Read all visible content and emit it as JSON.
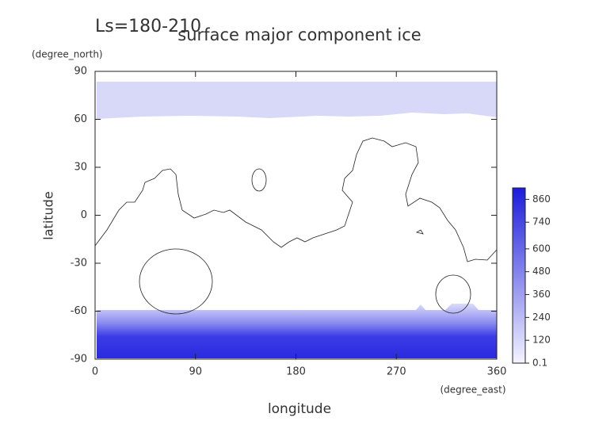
{
  "chart_data": {
    "type": "contour",
    "annotation": "Ls=180-210",
    "title": "surface major component ice",
    "xlabel": "longitude",
    "xunit": "(degree_east)",
    "ylabel": "latitude",
    "yunit": "(degree_north)",
    "xlim": [
      0,
      360
    ],
    "xticks": [
      0,
      90,
      180,
      270,
      360
    ],
    "ylim": [
      -90,
      90
    ],
    "yticks": [
      -90,
      -60,
      -30,
      0,
      30,
      60,
      90
    ],
    "colorbar": {
      "lim": [
        0.1,
        920
      ],
      "ticks": [
        0.1,
        120,
        240,
        360,
        480,
        600,
        740,
        860
      ]
    }
  }
}
